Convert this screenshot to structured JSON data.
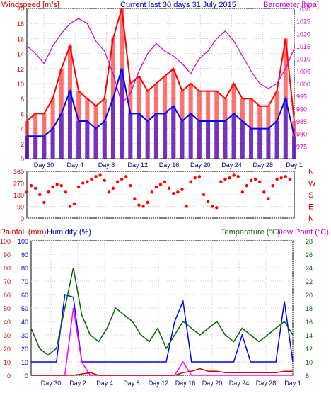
{
  "chart_data": [
    {
      "type": "line",
      "title": "Current last 30 days 31 July 2015",
      "ylabel": "Windspeed [m/s]",
      "y2label": "Barometer [hpa]",
      "ylim": [
        0,
        20
      ],
      "y2lim": [
        970,
        1030
      ],
      "yticks": [
        "0",
        "2",
        "4",
        "6",
        "8",
        "10",
        "12",
        "14",
        "16",
        "18",
        "20"
      ],
      "y2ticks": [
        "975",
        "980",
        "985",
        "990",
        "995",
        "1000",
        "1005",
        "1010",
        "1015",
        "1020",
        "1025",
        "1030"
      ],
      "xticks": [
        "Day 30",
        "Day 4",
        "Day 8",
        "Day 12",
        "Day 16",
        "Day 20",
        "Day 24",
        "Day 28",
        "Day 1"
      ],
      "x": [
        0,
        1,
        2,
        3,
        4,
        5,
        6,
        7,
        8,
        9,
        10,
        11,
        12,
        13,
        14,
        15,
        16,
        17,
        18,
        19,
        20,
        21,
        22,
        23,
        24,
        25,
        26,
        27,
        28,
        29,
        30,
        31
      ],
      "series": [
        {
          "name": "Gust",
          "color": "#ff0000",
          "values": [
            5,
            6,
            6,
            8,
            12,
            15,
            9,
            8,
            7,
            8,
            16,
            20,
            10,
            11,
            9,
            10,
            11,
            12,
            9,
            10,
            9,
            9,
            9,
            8,
            10,
            8,
            8,
            7,
            7,
            9,
            16,
            5
          ]
        },
        {
          "name": "Wind",
          "color": "#0000ff",
          "values": [
            3,
            3,
            3,
            4,
            6,
            9,
            5,
            5,
            4,
            5,
            8,
            12,
            6,
            6,
            5,
            6,
            6,
            7,
            5,
            6,
            5,
            5,
            5,
            5,
            6,
            5,
            4,
            4,
            4,
            5,
            8,
            3
          ]
        },
        {
          "name": "Barometer",
          "color": "#cc00cc",
          "axis": "y2",
          "values": [
            1015,
            1012,
            1008,
            1015,
            1020,
            1024,
            1026,
            1024,
            1017,
            1013,
            1004,
            992,
            996,
            1005,
            1012,
            1016,
            1013,
            1011,
            1008,
            1004,
            1010,
            1013,
            1018,
            1021,
            1017,
            1011,
            1005,
            1000,
            998,
            1000,
            1006,
            1014
          ]
        }
      ]
    },
    {
      "type": "scatter",
      "title": "",
      "ylim": [
        0,
        360
      ],
      "yticks": [
        "0",
        "90",
        "180",
        "270",
        "360"
      ],
      "y2ticks": [
        "N",
        "E",
        "S",
        "W",
        "N"
      ],
      "xticks": [
        "Day 30",
        "Day 4",
        "Day 8",
        "Day 12",
        "Day 16",
        "Day 20",
        "Day 24",
        "Day 28",
        "Day 1"
      ],
      "series": [
        {
          "name": "Wind direction",
          "color": "#ff0000",
          "x": [
            0,
            0.5,
            1,
            1.5,
            2,
            2.5,
            3,
            3.5,
            4,
            4.5,
            5,
            5.5,
            6,
            6.5,
            7,
            7.5,
            8,
            8.5,
            9,
            9.5,
            10,
            10.5,
            11,
            11.5,
            12,
            12.5,
            13,
            13.5,
            14,
            14.5,
            15,
            15.5,
            16,
            16.5,
            17,
            17.5,
            18,
            18.5,
            19,
            19.5,
            20,
            20.5,
            21,
            21.5,
            22,
            22.5,
            23,
            23.5,
            24,
            24.5,
            25,
            25.5,
            26,
            26.5,
            27,
            27.5,
            28,
            28.5,
            29,
            29.5,
            30,
            30.5
          ],
          "values": [
            200,
            250,
            230,
            180,
            120,
            200,
            240,
            260,
            250,
            200,
            90,
            110,
            240,
            270,
            280,
            300,
            320,
            330,
            290,
            200,
            230,
            280,
            300,
            320,
            250,
            150,
            100,
            90,
            120,
            200,
            240,
            260,
            280,
            230,
            190,
            200,
            220,
            90,
            280,
            310,
            320,
            180,
            130,
            90,
            80,
            280,
            300,
            310,
            330,
            320,
            200,
            250,
            290,
            300,
            280,
            200,
            150,
            250,
            300,
            310,
            320,
            300
          ]
        }
      ]
    },
    {
      "type": "line",
      "ylabel": "Rainfall (mm)",
      "ylabel2": "Humidity (%)",
      "y2label": "Temperature (°C)",
      "y3label": "Dew Point (°C)",
      "ylim": [
        0,
        100
      ],
      "y2lim": [
        8,
        28
      ],
      "yticks": [
        "0",
        "10",
        "20",
        "30",
        "40",
        "50",
        "60",
        "70",
        "80",
        "90",
        "100"
      ],
      "y2ticks": [
        "8",
        "10",
        "12",
        "14",
        "16",
        "18",
        "20",
        "22",
        "24",
        "26",
        "28"
      ],
      "xticks": [
        "Day 30",
        "Day 2",
        "Day 4",
        "Day 8",
        "Day 12",
        "Day 16",
        "Day 20",
        "Day 24",
        "Day 28",
        "Day 1"
      ],
      "series": [
        {
          "name": "Humidity",
          "color": "#0000ff",
          "values": [
            10,
            10,
            10,
            10,
            60,
            58,
            10,
            10,
            10,
            10,
            10,
            10,
            10,
            10,
            10,
            10,
            10,
            40,
            55,
            10,
            10,
            10,
            10,
            10,
            10,
            30,
            10,
            10,
            10,
            10,
            55,
            10
          ]
        },
        {
          "name": "Temperature",
          "color": "#006600",
          "axis": "y2",
          "values": [
            15,
            12,
            11,
            12,
            18,
            24,
            17,
            14,
            13,
            15,
            18,
            17,
            16,
            14,
            13,
            15,
            12,
            14,
            16,
            15,
            14,
            15,
            16,
            14,
            13,
            15,
            14,
            13,
            14,
            15,
            16,
            14
          ]
        },
        {
          "name": "Dew Point",
          "color": "#ff00ff",
          "axis": "y2",
          "values": [
            8,
            8,
            8,
            8,
            8,
            18,
            10,
            8,
            8,
            8,
            8,
            8,
            8,
            8,
            8,
            8,
            8,
            8,
            10,
            8,
            8,
            8,
            8,
            8,
            8,
            8,
            8,
            8,
            8,
            8,
            8,
            8
          ]
        },
        {
          "name": "Rainfall",
          "color": "#cc0000",
          "values": [
            0,
            0,
            0,
            0,
            0,
            0,
            1,
            2,
            0,
            0,
            0,
            0,
            0,
            0,
            0,
            0,
            0,
            0,
            2,
            3,
            5,
            3,
            3,
            2,
            2,
            2,
            2,
            2,
            2,
            2,
            3,
            3
          ]
        }
      ]
    }
  ],
  "labels": {
    "title": "Current last 30 days 31 July 2015",
    "windspeed": "Windspeed [m/s]",
    "barometer": "Barometer [hpa]",
    "rainfall": "Rainfall (mm)",
    "humidity": "Humidity (%)",
    "temperature": "Temperature (°C)",
    "dewpoint": "Dew Point (°C)"
  },
  "colors": {
    "gust": "#ff0000",
    "wind": "#0000ff",
    "barometer": "#cc00cc",
    "direction": "#ff0000",
    "humidity": "#0000ff",
    "temperature": "#006600",
    "dewpoint": "#ff00ff",
    "rainfall": "#cc0000"
  }
}
